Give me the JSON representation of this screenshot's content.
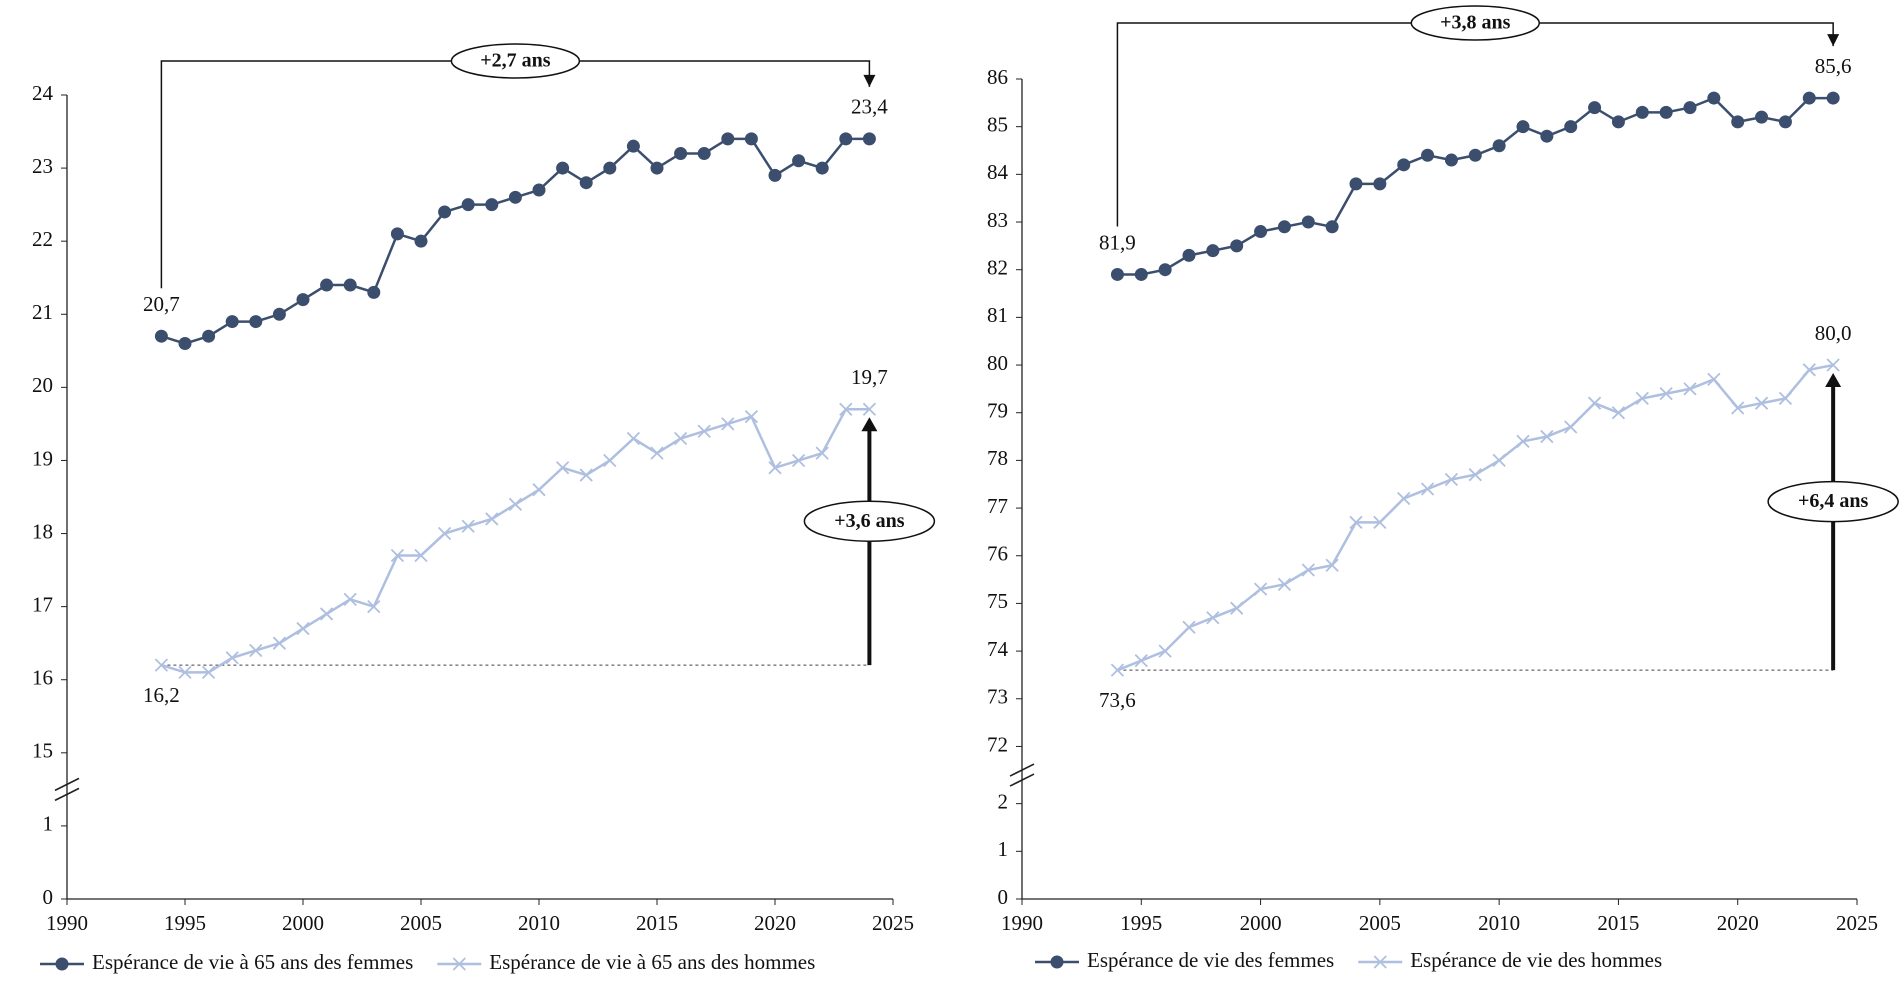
{
  "chart_data": [
    {
      "type": "line",
      "x": [
        1994,
        1995,
        1996,
        1997,
        1998,
        1999,
        2000,
        2001,
        2002,
        2003,
        2004,
        2005,
        2006,
        2007,
        2008,
        2009,
        2010,
        2011,
        2012,
        2013,
        2014,
        2015,
        2016,
        2017,
        2018,
        2019,
        2020,
        2021,
        2022,
        2023,
        2024
      ],
      "series": [
        {
          "name": "Espérance de vie à 65 ans des femmes",
          "color": "#3b4e6e",
          "marker": "circle",
          "values": [
            20.7,
            20.6,
            20.7,
            20.9,
            20.9,
            21.0,
            21.2,
            21.4,
            21.4,
            21.3,
            22.1,
            22.0,
            22.4,
            22.5,
            22.5,
            22.6,
            22.7,
            23.0,
            22.8,
            23.0,
            23.3,
            23.0,
            23.2,
            23.2,
            23.4,
            23.4,
            22.9,
            23.1,
            23.0,
            23.4,
            23.4
          ],
          "value_labels": [
            "20,7",
            null,
            null,
            null,
            null,
            null,
            null,
            null,
            null,
            null,
            null,
            null,
            null,
            null,
            null,
            null,
            null,
            null,
            null,
            null,
            null,
            null,
            null,
            null,
            null,
            null,
            null,
            null,
            null,
            null,
            "23,4"
          ]
        },
        {
          "name": "Espérance de vie à 65 ans des hommes",
          "color": "#aebfe0",
          "marker": "x",
          "values": [
            16.2,
            16.1,
            16.1,
            16.3,
            16.4,
            16.5,
            16.7,
            16.9,
            17.1,
            17.0,
            17.7,
            17.7,
            18.0,
            18.1,
            18.2,
            18.4,
            18.6,
            18.9,
            18.8,
            19.0,
            19.3,
            19.1,
            19.3,
            19.4,
            19.5,
            19.6,
            18.9,
            19.0,
            19.1,
            19.7,
            19.7
          ],
          "value_labels": [
            "16,2",
            null,
            null,
            null,
            null,
            null,
            null,
            null,
            null,
            null,
            null,
            null,
            null,
            null,
            null,
            null,
            null,
            null,
            null,
            null,
            null,
            null,
            null,
            null,
            null,
            null,
            null,
            null,
            null,
            null,
            "19,7"
          ]
        }
      ],
      "xlim": [
        1990,
        2025
      ],
      "xticks": [
        1990,
        1995,
        2000,
        2005,
        2010,
        2015,
        2020,
        2025
      ],
      "ylim": [
        0,
        24
      ],
      "y_break": [
        1.5,
        14.5
      ],
      "yticks": [
        0,
        1,
        15,
        16,
        17,
        18,
        19,
        20,
        21,
        22,
        23,
        24
      ],
      "bracket_label": "+2,7 ans",
      "arrow_label": "+3,6 ans",
      "legend": "bottom"
    },
    {
      "type": "line",
      "x": [
        1994,
        1995,
        1996,
        1997,
        1998,
        1999,
        2000,
        2001,
        2002,
        2003,
        2004,
        2005,
        2006,
        2007,
        2008,
        2009,
        2010,
        2011,
        2012,
        2013,
        2014,
        2015,
        2016,
        2017,
        2018,
        2019,
        2020,
        2021,
        2022,
        2023,
        2024
      ],
      "series": [
        {
          "name": "Espérance de vie des femmes",
          "color": "#3b4e6e",
          "marker": "circle",
          "values": [
            81.9,
            81.9,
            82.0,
            82.3,
            82.4,
            82.5,
            82.8,
            82.9,
            83.0,
            82.9,
            83.8,
            83.8,
            84.2,
            84.4,
            84.3,
            84.4,
            84.6,
            85.0,
            84.8,
            85.0,
            85.4,
            85.1,
            85.3,
            85.3,
            85.4,
            85.6,
            85.1,
            85.2,
            85.1,
            85.6,
            85.6
          ],
          "value_labels": [
            "81,9",
            null,
            null,
            null,
            null,
            null,
            null,
            null,
            null,
            null,
            null,
            null,
            null,
            null,
            null,
            null,
            null,
            null,
            null,
            null,
            null,
            null,
            null,
            null,
            null,
            null,
            null,
            null,
            null,
            null,
            "85,6"
          ]
        },
        {
          "name": "Espérance de vie des hommes",
          "color": "#aebfe0",
          "marker": "x",
          "values": [
            73.6,
            73.8,
            74.0,
            74.5,
            74.7,
            74.9,
            75.3,
            75.4,
            75.7,
            75.8,
            76.7,
            76.7,
            77.2,
            77.4,
            77.6,
            77.7,
            78.0,
            78.4,
            78.5,
            78.7,
            79.2,
            79.0,
            79.3,
            79.4,
            79.5,
            79.7,
            79.1,
            79.2,
            79.3,
            79.9,
            80.0
          ],
          "value_labels": [
            "73,6",
            null,
            null,
            null,
            null,
            null,
            null,
            null,
            null,
            null,
            null,
            null,
            null,
            null,
            null,
            null,
            null,
            null,
            null,
            null,
            null,
            null,
            null,
            null,
            null,
            null,
            null,
            null,
            null,
            null,
            "80,0"
          ]
        }
      ],
      "xlim": [
        1990,
        2025
      ],
      "xticks": [
        1990,
        1995,
        2000,
        2005,
        2010,
        2015,
        2020,
        2025
      ],
      "ylim": [
        0,
        86
      ],
      "y_break": [
        2.6,
        71.4
      ],
      "yticks": [
        0,
        1,
        2,
        72,
        73,
        74,
        75,
        76,
        77,
        78,
        79,
        80,
        81,
        82,
        83,
        84,
        85,
        86
      ],
      "bracket_label": "+3,8 ans",
      "arrow_label": "+6,4 ans",
      "legend": "bottom"
    }
  ]
}
